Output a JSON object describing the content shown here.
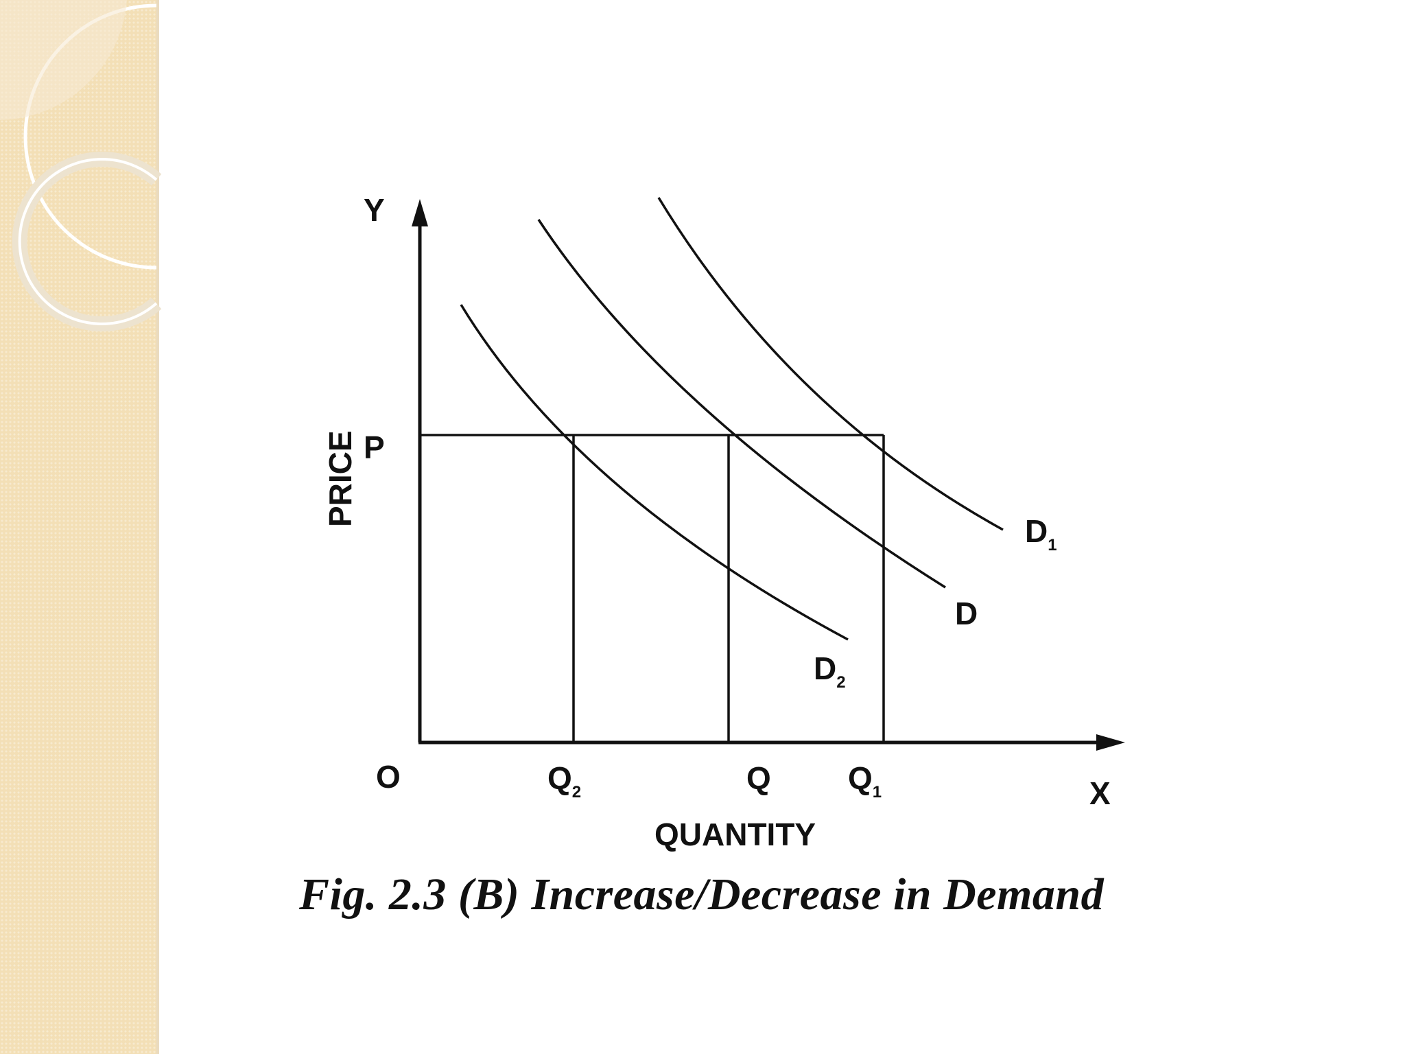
{
  "slide": {
    "sidebar_color": "#f3dfb6",
    "decor": "ring-ornament"
  },
  "diagram": {
    "axes": {
      "y_label": "Y",
      "x_label": "X",
      "origin_label": "O",
      "price_label": "PRICE",
      "quantity_label": "QUANTITY",
      "price_level_label": "P"
    },
    "quantity_labels": [
      {
        "base": "Q",
        "sub": "2"
      },
      {
        "base": "Q",
        "sub": ""
      },
      {
        "base": "Q",
        "sub": "1"
      }
    ],
    "curves": [
      {
        "base": "D",
        "sub": "1"
      },
      {
        "base": "D",
        "sub": ""
      },
      {
        "base": "D",
        "sub": "2"
      }
    ],
    "caption": "Fig. 2.3 (B) Increase/Decrease in Demand"
  }
}
